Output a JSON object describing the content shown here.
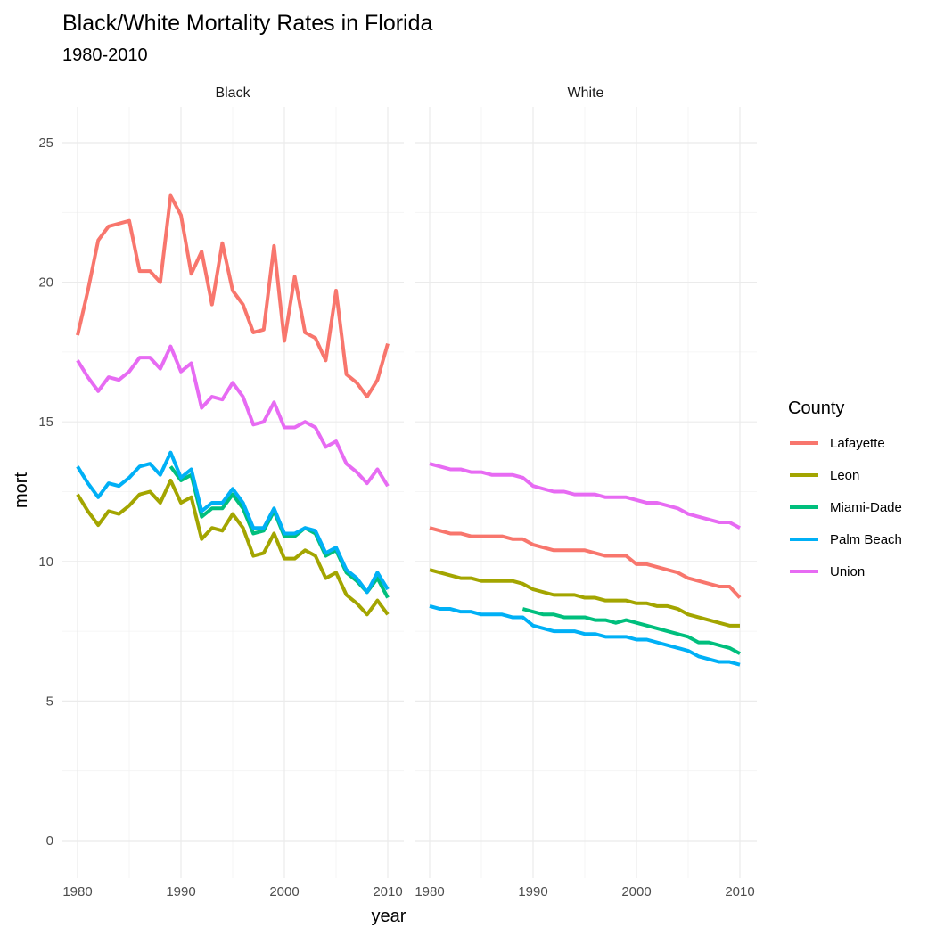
{
  "chart_data": {
    "type": "line",
    "title": "Black/White Mortality Rates in Florida",
    "subtitle": "1980-2010",
    "xlabel": "year",
    "ylabel": "mort",
    "xlim": [
      1980,
      2010
    ],
    "ylim": [
      0,
      25
    ],
    "x_ticks": [
      "1980",
      "1990",
      "2000",
      "2010"
    ],
    "y_ticks": [
      "0",
      "5",
      "10",
      "15",
      "20",
      "25"
    ],
    "grid": true,
    "legend": {
      "title": "County",
      "placement": "right"
    },
    "facets": [
      "Black",
      "White"
    ],
    "series": [
      {
        "name": "Lafayette",
        "color": "#F8766D"
      },
      {
        "name": "Leon",
        "color": "#A3A500"
      },
      {
        "name": "Miami-Dade",
        "color": "#00BF7D"
      },
      {
        "name": "Palm Beach",
        "color": "#00B0F6"
      },
      {
        "name": "Union",
        "color": "#E76BF3"
      }
    ],
    "panels": [
      {
        "facet": "Black",
        "lines": [
          {
            "series": "Lafayette",
            "x": [
              1980,
              1981,
              1982,
              1983,
              1984,
              1985,
              1986,
              1987,
              1988,
              1989,
              1990,
              1991,
              1992,
              1993,
              1994,
              1995,
              1996,
              1997,
              1998,
              1999,
              2000,
              2001,
              2002,
              2003,
              2004,
              2005,
              2006,
              2007,
              2008,
              2009,
              2010
            ],
            "y": [
              18.1,
              19.7,
              21.5,
              22.0,
              22.1,
              22.2,
              20.4,
              20.4,
              20.0,
              23.1,
              22.4,
              20.3,
              21.1,
              19.2,
              21.4,
              19.7,
              19.2,
              18.2,
              18.3,
              21.3,
              17.9,
              20.2,
              18.2,
              18.0,
              17.2,
              19.7,
              16.7,
              16.4,
              15.9,
              16.5,
              17.8
            ]
          },
          {
            "series": "Leon",
            "x": [
              1980,
              1981,
              1982,
              1983,
              1984,
              1985,
              1986,
              1987,
              1988,
              1989,
              1990,
              1991,
              1992,
              1993,
              1994,
              1995,
              1996,
              1997,
              1998,
              1999,
              2000,
              2001,
              2002,
              2003,
              2004,
              2005,
              2006,
              2007,
              2008,
              2009,
              2010
            ],
            "y": [
              12.4,
              11.8,
              11.3,
              11.8,
              11.7,
              12.0,
              12.4,
              12.5,
              12.1,
              12.9,
              12.1,
              12.3,
              10.8,
              11.2,
              11.1,
              11.7,
              11.2,
              10.2,
              10.3,
              11.0,
              10.1,
              10.1,
              10.4,
              10.2,
              9.4,
              9.6,
              8.8,
              8.5,
              8.1,
              8.6,
              8.1
            ]
          },
          {
            "series": "Miami-Dade",
            "x": [
              1989,
              1990,
              1991,
              1992,
              1993,
              1994,
              1995,
              1996,
              1997,
              1998,
              1999,
              2000,
              2001,
              2002,
              2003,
              2004,
              2005,
              2006,
              2007,
              2008,
              2009,
              2010
            ],
            "y": [
              13.4,
              12.9,
              13.1,
              11.6,
              11.9,
              11.9,
              12.4,
              11.9,
              11.0,
              11.1,
              11.8,
              10.9,
              10.9,
              11.2,
              11.0,
              10.2,
              10.4,
              9.6,
              9.3,
              8.9,
              9.4,
              8.7
            ]
          },
          {
            "series": "Palm Beach",
            "x": [
              1980,
              1981,
              1982,
              1983,
              1984,
              1985,
              1986,
              1987,
              1988,
              1989,
              1990,
              1991,
              1992,
              1993,
              1994,
              1995,
              1996,
              1997,
              1998,
              1999,
              2000,
              2001,
              2002,
              2003,
              2004,
              2005,
              2006,
              2007,
              2008,
              2009,
              2010
            ],
            "y": [
              13.4,
              12.8,
              12.3,
              12.8,
              12.7,
              13.0,
              13.4,
              13.5,
              13.1,
              13.9,
              13.0,
              13.3,
              11.8,
              12.1,
              12.1,
              12.6,
              12.1,
              11.2,
              11.2,
              11.9,
              11.0,
              11.0,
              11.2,
              11.1,
              10.3,
              10.5,
              9.7,
              9.4,
              8.9,
              9.6,
              9.0
            ]
          },
          {
            "series": "Union",
            "x": [
              1980,
              1981,
              1982,
              1983,
              1984,
              1985,
              1986,
              1987,
              1988,
              1989,
              1990,
              1991,
              1992,
              1993,
              1994,
              1995,
              1996,
              1997,
              1998,
              1999,
              2000,
              2001,
              2002,
              2003,
              2004,
              2005,
              2006,
              2007,
              2008,
              2009,
              2010
            ],
            "y": [
              17.2,
              16.6,
              16.1,
              16.6,
              16.5,
              16.8,
              17.3,
              17.3,
              16.9,
              17.7,
              16.8,
              17.1,
              15.5,
              15.9,
              15.8,
              16.4,
              15.9,
              14.9,
              15.0,
              15.7,
              14.8,
              14.8,
              15.0,
              14.8,
              14.1,
              14.3,
              13.5,
              13.2,
              12.8,
              13.3,
              12.7
            ]
          }
        ]
      },
      {
        "facet": "White",
        "lines": [
          {
            "series": "Lafayette",
            "x": [
              1980,
              1981,
              1982,
              1983,
              1984,
              1985,
              1986,
              1987,
              1988,
              1989,
              1990,
              1991,
              1992,
              1993,
              1994,
              1995,
              1996,
              1997,
              1998,
              1999,
              2000,
              2001,
              2002,
              2003,
              2004,
              2005,
              2006,
              2007,
              2008,
              2009,
              2010
            ],
            "y": [
              11.2,
              11.1,
              11.0,
              11.0,
              10.9,
              10.9,
              10.9,
              10.9,
              10.8,
              10.8,
              10.6,
              10.5,
              10.4,
              10.4,
              10.4,
              10.4,
              10.3,
              10.2,
              10.2,
              10.2,
              9.9,
              9.9,
              9.8,
              9.7,
              9.6,
              9.4,
              9.3,
              9.2,
              9.1,
              9.1,
              8.7
            ]
          },
          {
            "series": "Leon",
            "x": [
              1980,
              1981,
              1982,
              1983,
              1984,
              1985,
              1986,
              1987,
              1988,
              1989,
              1990,
              1991,
              1992,
              1993,
              1994,
              1995,
              1996,
              1997,
              1998,
              1999,
              2000,
              2001,
              2002,
              2003,
              2004,
              2005,
              2006,
              2007,
              2008,
              2009,
              2010
            ],
            "y": [
              9.7,
              9.6,
              9.5,
              9.4,
              9.4,
              9.3,
              9.3,
              9.3,
              9.3,
              9.2,
              9.0,
              8.9,
              8.8,
              8.8,
              8.8,
              8.7,
              8.7,
              8.6,
              8.6,
              8.6,
              8.5,
              8.5,
              8.4,
              8.4,
              8.3,
              8.1,
              8.0,
              7.9,
              7.8,
              7.7,
              7.7
            ]
          },
          {
            "series": "Miami-Dade",
            "x": [
              1989,
              1990,
              1991,
              1992,
              1993,
              1994,
              1995,
              1996,
              1997,
              1998,
              1999,
              2000,
              2001,
              2002,
              2003,
              2004,
              2005,
              2006,
              2007,
              2008,
              2009,
              2010
            ],
            "y": [
              8.3,
              8.2,
              8.1,
              8.1,
              8.0,
              8.0,
              8.0,
              7.9,
              7.9,
              7.8,
              7.9,
              7.8,
              7.7,
              7.6,
              7.5,
              7.4,
              7.3,
              7.1,
              7.1,
              7.0,
              6.9,
              6.7
            ]
          },
          {
            "series": "Palm Beach",
            "x": [
              1980,
              1981,
              1982,
              1983,
              1984,
              1985,
              1986,
              1987,
              1988,
              1989,
              1990,
              1991,
              1992,
              1993,
              1994,
              1995,
              1996,
              1997,
              1998,
              1999,
              2000,
              2001,
              2002,
              2003,
              2004,
              2005,
              2006,
              2007,
              2008,
              2009,
              2010
            ],
            "y": [
              8.4,
              8.3,
              8.3,
              8.2,
              8.2,
              8.1,
              8.1,
              8.1,
              8.0,
              8.0,
              7.7,
              7.6,
              7.5,
              7.5,
              7.5,
              7.4,
              7.4,
              7.3,
              7.3,
              7.3,
              7.2,
              7.2,
              7.1,
              7.0,
              6.9,
              6.8,
              6.6,
              6.5,
              6.4,
              6.4,
              6.3
            ]
          },
          {
            "series": "Union",
            "x": [
              1980,
              1981,
              1982,
              1983,
              1984,
              1985,
              1986,
              1987,
              1988,
              1989,
              1990,
              1991,
              1992,
              1993,
              1994,
              1995,
              1996,
              1997,
              1998,
              1999,
              2000,
              2001,
              2002,
              2003,
              2004,
              2005,
              2006,
              2007,
              2008,
              2009,
              2010
            ],
            "y": [
              13.5,
              13.4,
              13.3,
              13.3,
              13.2,
              13.2,
              13.1,
              13.1,
              13.1,
              13.0,
              12.7,
              12.6,
              12.5,
              12.5,
              12.4,
              12.4,
              12.4,
              12.3,
              12.3,
              12.3,
              12.2,
              12.1,
              12.1,
              12.0,
              11.9,
              11.7,
              11.6,
              11.5,
              11.4,
              11.4,
              11.2
            ]
          }
        ]
      }
    ]
  }
}
